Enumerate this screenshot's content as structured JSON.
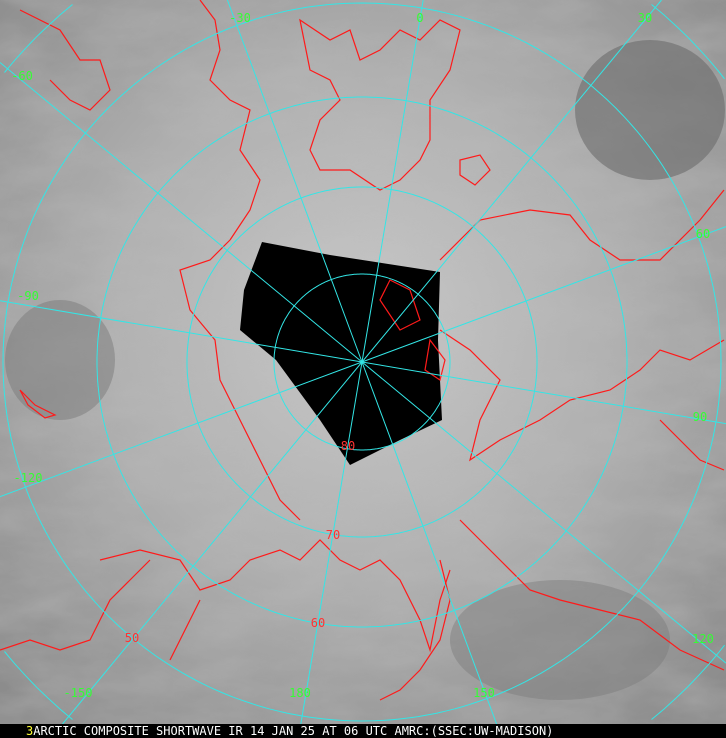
{
  "image": {
    "panel_number": "3",
    "caption": "ARCTIC COMPOSITE SHORTWAVE IR 14 JAN 25 AT 06 UTC AMRC:(SSEC:UW-MADISON)",
    "colors": {
      "grid": "#33e6e6",
      "coastline": "#ff1a1a",
      "longitude_label": "#33ff33",
      "latitude_label": "#ff3333",
      "panel_number": "#ffff33",
      "no_data": "#000000"
    },
    "latitude_labels": [
      "80",
      "70",
      "60",
      "50"
    ],
    "longitude_labels": [
      "-60",
      "-30",
      "0",
      "30",
      "60",
      "90",
      "120",
      "150",
      "180",
      "-150",
      "-120",
      "-90"
    ],
    "projection": "polar stereographic, north pole centered"
  }
}
